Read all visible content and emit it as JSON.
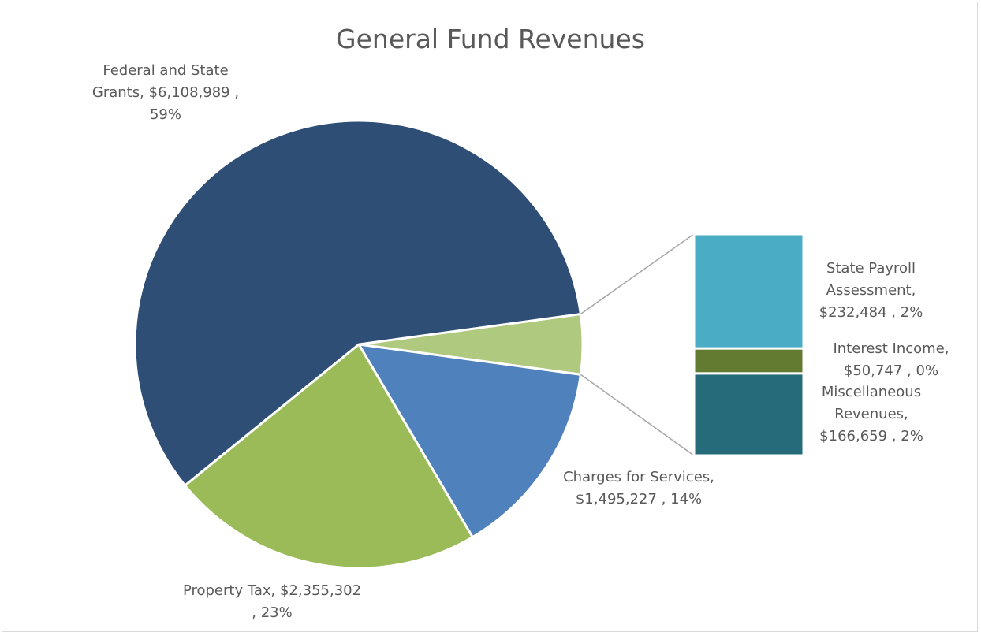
{
  "chart_data": {
    "type": "pie-of-bar",
    "title": "General Fund Revenues",
    "categories": [
      "Federal and State Grants,",
      "Property Tax,",
      "Charges for Services,"
    ],
    "values": [
      6108989,
      2355302,
      1495227
    ],
    "value_labels": [
      "$6,108,989 ,",
      "$2,355,302 ,",
      "$1,495,227 ,"
    ],
    "percent_labels": [
      "59%",
      "23%",
      "14%"
    ],
    "colors": [
      "#2e4e76",
      "#9bbb59",
      "#4f81bd"
    ],
    "other_color": "#afc97f",
    "bar": {
      "categories": [
        "State Payroll Assessment,",
        "Interest Income,",
        "Miscellaneous Revenues,"
      ],
      "values": [
        232484,
        50747,
        166659
      ],
      "value_labels": [
        "$232,484 ,",
        "$50,747 ,",
        "$166,659 ,"
      ],
      "percent_labels": [
        "2%",
        "0%",
        "2%"
      ],
      "colors": [
        "#4bacc6",
        "#627b31",
        "#266b7a"
      ]
    }
  }
}
